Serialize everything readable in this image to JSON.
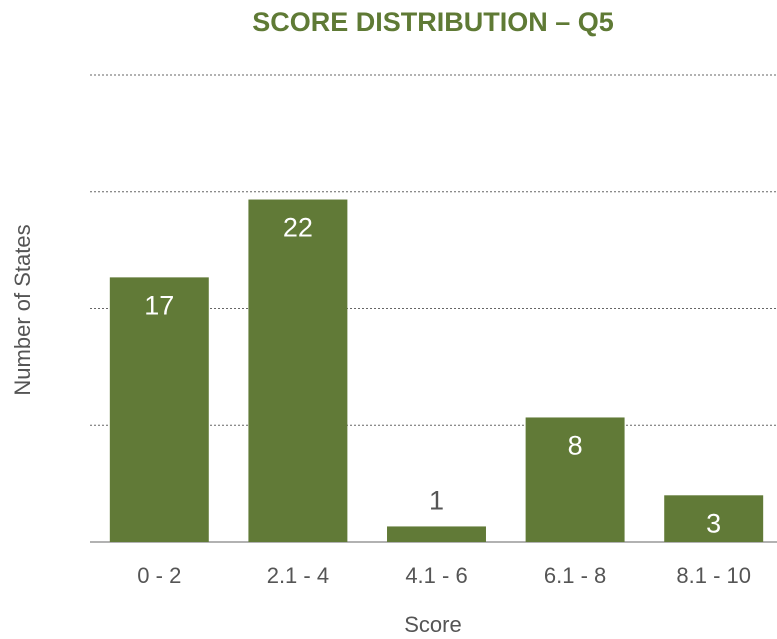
{
  "chart_data": {
    "type": "bar",
    "title": "SCORE DISTRIBUTION – Q5",
    "x_label": "Score",
    "y_label": "Number of States",
    "categories": [
      "0 - 2",
      "2.1 - 4",
      "4.1 - 6",
      "6.1 - 8",
      "8.1 - 10"
    ],
    "values": [
      17,
      22,
      1,
      8,
      3
    ],
    "color": "#617a37",
    "ylim": [
      0,
      30
    ],
    "yticks": [
      0,
      7.5,
      15,
      22.5,
      30
    ],
    "grid": true
  }
}
